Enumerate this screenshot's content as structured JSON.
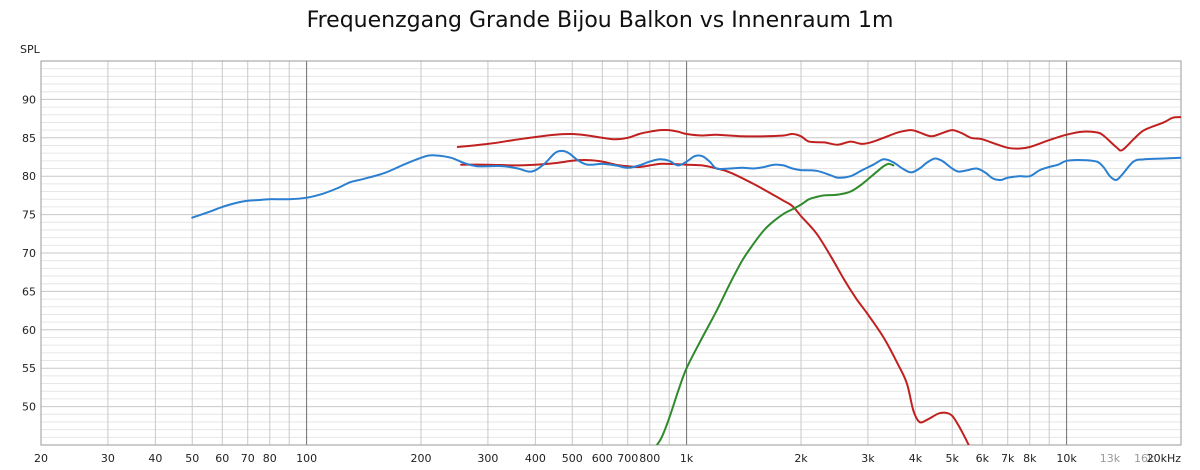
{
  "chart_data": {
    "type": "line",
    "title": "Frequenzgang Grande Bijou Balkon vs Innenraum 1m",
    "ylabel": "SPL",
    "xlabel": "",
    "x_scale": "log",
    "xlim": [
      20,
      20000
    ],
    "ylim": [
      45,
      95
    ],
    "grid": true,
    "y_ticks": [
      "90",
      "85",
      "80",
      "75",
      "70",
      "65",
      "60",
      "55",
      "50"
    ],
    "y_tick_values": [
      90,
      85,
      80,
      75,
      70,
      65,
      60,
      55,
      50
    ],
    "x_ticks": [
      {
        "value": 20,
        "label": "20"
      },
      {
        "value": 30,
        "label": "30"
      },
      {
        "value": 40,
        "label": "40"
      },
      {
        "value": 50,
        "label": "50"
      },
      {
        "value": 60,
        "label": "60"
      },
      {
        "value": 70,
        "label": "70"
      },
      {
        "value": 80,
        "label": "80"
      },
      {
        "value": 100,
        "label": "100"
      },
      {
        "value": 200,
        "label": "200"
      },
      {
        "value": 300,
        "label": "300"
      },
      {
        "value": 400,
        "label": "400"
      },
      {
        "value": 500,
        "label": "500"
      },
      {
        "value": 600,
        "label": "600"
      },
      {
        "value": 700,
        "label": "700"
      },
      {
        "value": 800,
        "label": "800"
      },
      {
        "value": 1000,
        "label": "1k"
      },
      {
        "value": 2000,
        "label": "2k"
      },
      {
        "value": 3000,
        "label": "3k"
      },
      {
        "value": 4000,
        "label": "4k"
      },
      {
        "value": 5000,
        "label": "5k"
      },
      {
        "value": 6000,
        "label": "6k"
      },
      {
        "value": 7000,
        "label": "7k"
      },
      {
        "value": 8000,
        "label": "8k"
      },
      {
        "value": 10000,
        "label": "10k"
      },
      {
        "value": 13000,
        "label": "13k",
        "muted": true
      },
      {
        "value": 16000,
        "label": "16k",
        "muted": true
      },
      {
        "value": 20000,
        "label": "20kHz"
      }
    ],
    "series": [
      {
        "color": "#c0201f",
        "points": [
          [
            250,
            83.8
          ],
          [
            300,
            84.2
          ],
          [
            350,
            84.7
          ],
          [
            400,
            85.1
          ],
          [
            450,
            85.4
          ],
          [
            500,
            85.5
          ],
          [
            550,
            85.3
          ],
          [
            600,
            85.0
          ],
          [
            650,
            84.8
          ],
          [
            700,
            85.0
          ],
          [
            750,
            85.5
          ],
          [
            800,
            85.8
          ],
          [
            850,
            86.0
          ],
          [
            900,
            86.0
          ],
          [
            950,
            85.8
          ],
          [
            1000,
            85.5
          ],
          [
            1100,
            85.3
          ],
          [
            1200,
            85.4
          ],
          [
            1400,
            85.2
          ],
          [
            1600,
            85.2
          ],
          [
            1800,
            85.3
          ],
          [
            1900,
            85.5
          ],
          [
            2000,
            85.2
          ],
          [
            2100,
            84.5
          ],
          [
            2300,
            84.4
          ],
          [
            2500,
            84.1
          ],
          [
            2700,
            84.5
          ],
          [
            2900,
            84.2
          ],
          [
            3100,
            84.5
          ],
          [
            3300,
            85.0
          ],
          [
            3600,
            85.7
          ],
          [
            3900,
            86.0
          ],
          [
            4100,
            85.7
          ],
          [
            4400,
            85.2
          ],
          [
            4700,
            85.6
          ],
          [
            5000,
            86.0
          ],
          [
            5300,
            85.6
          ],
          [
            5600,
            85.0
          ],
          [
            6000,
            84.8
          ],
          [
            6500,
            84.2
          ],
          [
            7000,
            83.7
          ],
          [
            7500,
            83.6
          ],
          [
            8000,
            83.8
          ],
          [
            9000,
            84.7
          ],
          [
            10000,
            85.4
          ],
          [
            11000,
            85.8
          ],
          [
            12000,
            85.7
          ],
          [
            12500,
            85.3
          ],
          [
            13500,
            83.8
          ],
          [
            14000,
            83.4
          ],
          [
            15000,
            84.8
          ],
          [
            16000,
            86.0
          ],
          [
            18000,
            87.0
          ],
          [
            19000,
            87.6
          ],
          [
            20000,
            87.7
          ]
        ]
      },
      {
        "color": "#c0201f",
        "points": [
          [
            255,
            81.5
          ],
          [
            300,
            81.5
          ],
          [
            350,
            81.4
          ],
          [
            400,
            81.5
          ],
          [
            450,
            81.7
          ],
          [
            500,
            82.0
          ],
          [
            550,
            82.1
          ],
          [
            600,
            81.9
          ],
          [
            650,
            81.5
          ],
          [
            700,
            81.3
          ],
          [
            750,
            81.2
          ],
          [
            800,
            81.4
          ],
          [
            850,
            81.6
          ],
          [
            900,
            81.6
          ],
          [
            1000,
            81.5
          ],
          [
            1100,
            81.4
          ],
          [
            1200,
            81.0
          ],
          [
            1300,
            80.5
          ],
          [
            1500,
            79.0
          ],
          [
            1700,
            77.5
          ],
          [
            1800,
            76.8
          ],
          [
            1900,
            76.1
          ],
          [
            2000,
            74.8
          ],
          [
            2200,
            72.5
          ],
          [
            2400,
            69.5
          ],
          [
            2600,
            66.5
          ],
          [
            2800,
            64.0
          ],
          [
            3000,
            62.0
          ],
          [
            3300,
            59.0
          ],
          [
            3600,
            55.5
          ],
          [
            3800,
            53.0
          ],
          [
            3950,
            49.5
          ],
          [
            4100,
            48.0
          ],
          [
            4300,
            48.3
          ],
          [
            4600,
            49.1
          ],
          [
            4800,
            49.2
          ],
          [
            5000,
            48.8
          ],
          [
            5200,
            47.5
          ],
          [
            5400,
            46.0
          ],
          [
            5550,
            44.8
          ]
        ]
      },
      {
        "color": "#2a7fd0",
        "points": [
          [
            50,
            74.6
          ],
          [
            55,
            75.3
          ],
          [
            60,
            76.0
          ],
          [
            65,
            76.5
          ],
          [
            70,
            76.8
          ],
          [
            75,
            76.9
          ],
          [
            80,
            77.0
          ],
          [
            90,
            77.0
          ],
          [
            100,
            77.2
          ],
          [
            110,
            77.7
          ],
          [
            120,
            78.4
          ],
          [
            130,
            79.2
          ],
          [
            140,
            79.6
          ],
          [
            160,
            80.4
          ],
          [
            180,
            81.5
          ],
          [
            200,
            82.4
          ],
          [
            210,
            82.7
          ],
          [
            220,
            82.7
          ],
          [
            240,
            82.4
          ],
          [
            260,
            81.7
          ],
          [
            280,
            81.3
          ],
          [
            300,
            81.3
          ],
          [
            330,
            81.3
          ],
          [
            360,
            81.0
          ],
          [
            390,
            80.6
          ],
          [
            420,
            81.5
          ],
          [
            450,
            83.0
          ],
          [
            470,
            83.3
          ],
          [
            490,
            83.0
          ],
          [
            520,
            82.0
          ],
          [
            550,
            81.5
          ],
          [
            600,
            81.6
          ],
          [
            650,
            81.4
          ],
          [
            700,
            81.1
          ],
          [
            750,
            81.4
          ],
          [
            800,
            81.9
          ],
          [
            850,
            82.2
          ],
          [
            900,
            82.0
          ],
          [
            950,
            81.4
          ],
          [
            1000,
            81.9
          ],
          [
            1050,
            82.6
          ],
          [
            1100,
            82.6
          ],
          [
            1150,
            81.9
          ],
          [
            1200,
            81.0
          ],
          [
            1300,
            81.0
          ],
          [
            1400,
            81.1
          ],
          [
            1500,
            81.0
          ],
          [
            1600,
            81.2
          ],
          [
            1700,
            81.5
          ],
          [
            1800,
            81.4
          ],
          [
            1900,
            81.0
          ],
          [
            2000,
            80.8
          ],
          [
            2200,
            80.7
          ],
          [
            2400,
            80.1
          ],
          [
            2500,
            79.8
          ],
          [
            2700,
            80.0
          ],
          [
            2900,
            80.8
          ],
          [
            3100,
            81.5
          ],
          [
            3300,
            82.2
          ],
          [
            3500,
            81.8
          ],
          [
            3700,
            81.0
          ],
          [
            3900,
            80.5
          ],
          [
            4100,
            81.0
          ],
          [
            4300,
            81.8
          ],
          [
            4500,
            82.3
          ],
          [
            4700,
            82.0
          ],
          [
            5000,
            81.0
          ],
          [
            5200,
            80.6
          ],
          [
            5500,
            80.8
          ],
          [
            5800,
            81.0
          ],
          [
            6100,
            80.5
          ],
          [
            6400,
            79.7
          ],
          [
            6700,
            79.5
          ],
          [
            7000,
            79.8
          ],
          [
            7500,
            80.0
          ],
          [
            8000,
            80.0
          ],
          [
            8500,
            80.8
          ],
          [
            9000,
            81.2
          ],
          [
            9500,
            81.5
          ],
          [
            10000,
            82.0
          ],
          [
            11000,
            82.1
          ],
          [
            12000,
            81.9
          ],
          [
            12500,
            81.2
          ],
          [
            13000,
            80.0
          ],
          [
            13500,
            79.5
          ],
          [
            14000,
            80.2
          ],
          [
            15000,
            81.9
          ],
          [
            16000,
            82.2
          ],
          [
            18000,
            82.3
          ],
          [
            20000,
            82.4
          ]
        ]
      },
      {
        "color": "#2f8a2c",
        "points": [
          [
            830,
            44.8
          ],
          [
            860,
            46.0
          ],
          [
            900,
            48.5
          ],
          [
            950,
            52.0
          ],
          [
            1000,
            55.0
          ],
          [
            1100,
            59.0
          ],
          [
            1200,
            62.5
          ],
          [
            1300,
            66.0
          ],
          [
            1400,
            69.0
          ],
          [
            1500,
            71.2
          ],
          [
            1600,
            73.0
          ],
          [
            1700,
            74.2
          ],
          [
            1800,
            75.1
          ],
          [
            1900,
            75.7
          ],
          [
            2000,
            76.3
          ],
          [
            2100,
            77.0
          ],
          [
            2200,
            77.3
          ],
          [
            2300,
            77.5
          ],
          [
            2500,
            77.6
          ],
          [
            2700,
            78.0
          ],
          [
            2900,
            79.0
          ],
          [
            3100,
            80.2
          ],
          [
            3300,
            81.3
          ],
          [
            3400,
            81.6
          ],
          [
            3500,
            81.4
          ]
        ]
      }
    ]
  }
}
